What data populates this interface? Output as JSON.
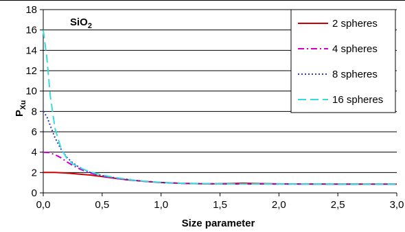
{
  "chart_data": {
    "type": "line",
    "title": "",
    "annotation": {
      "base": "SiO",
      "sub": "2"
    },
    "xlabel": "Size parameter",
    "ylabel": {
      "base": "P",
      "sub": "Xu"
    },
    "xlim": [
      0,
      3
    ],
    "ylim": [
      0,
      18
    ],
    "xticks": [
      0,
      0.5,
      1,
      1.5,
      2,
      2.5,
      3
    ],
    "xtick_labels": [
      "0,0",
      "0,5",
      "1,0",
      "1,5",
      "2,0",
      "2,5",
      "3,0"
    ],
    "yticks": [
      0,
      2,
      4,
      6,
      8,
      10,
      12,
      14,
      16,
      18
    ],
    "ytick_labels": [
      "0",
      "2",
      "4",
      "6",
      "8",
      "10",
      "12",
      "14",
      "16",
      "18"
    ],
    "grid": "horizontal",
    "legend_position": "top-right",
    "series": [
      {
        "name": "2 spheres",
        "color": "#cc0000",
        "dash": "none",
        "x": [
          0,
          0.1,
          0.2,
          0.3,
          0.4,
          0.5,
          0.6,
          0.7,
          0.8,
          0.9,
          1.0,
          1.2,
          1.4,
          1.6,
          1.7,
          1.8,
          2.0,
          2.2,
          2.5,
          2.8,
          3.0
        ],
        "y": [
          2.0,
          2.0,
          1.95,
          1.85,
          1.75,
          1.6,
          1.45,
          1.3,
          1.2,
          1.1,
          1.02,
          0.93,
          0.88,
          0.92,
          0.95,
          0.92,
          0.88,
          0.87,
          0.86,
          0.86,
          0.86
        ]
      },
      {
        "name": "4 spheres",
        "color": "#cc00cc",
        "dash": "9 4 2 4",
        "x": [
          0,
          0.05,
          0.1,
          0.15,
          0.2,
          0.25,
          0.3,
          0.35,
          0.4,
          0.5,
          0.6,
          0.7,
          0.8,
          1.0,
          1.2,
          1.5,
          2.0,
          2.5,
          3.0
        ],
        "y": [
          4.0,
          3.95,
          3.75,
          3.45,
          3.05,
          2.7,
          2.4,
          2.15,
          1.95,
          1.65,
          1.45,
          1.3,
          1.18,
          1.0,
          0.92,
          0.88,
          0.87,
          0.86,
          0.86
        ]
      },
      {
        "name": "8 spheres",
        "color": "#3333cc",
        "dash": "2 3",
        "x": [
          0,
          0.03,
          0.06,
          0.1,
          0.15,
          0.2,
          0.25,
          0.3,
          0.4,
          0.5,
          0.6,
          0.7,
          0.8,
          1.0,
          1.2,
          1.5,
          2.0,
          2.5,
          3.0
        ],
        "y": [
          8.0,
          7.5,
          6.6,
          5.4,
          4.3,
          3.5,
          2.95,
          2.55,
          2.0,
          1.7,
          1.5,
          1.35,
          1.2,
          1.02,
          0.93,
          0.88,
          0.87,
          0.86,
          0.86
        ]
      },
      {
        "name": "16 spheres",
        "color": "#33dddd",
        "dash": "12 6",
        "x": [
          0,
          0.03,
          0.06,
          0.1,
          0.15,
          0.2,
          0.25,
          0.3,
          0.4,
          0.5,
          0.6,
          0.7,
          0.8,
          1.0,
          1.2,
          1.5,
          2.0,
          2.5,
          3.0
        ],
        "y": [
          16.0,
          13.3,
          9.5,
          6.3,
          4.4,
          3.4,
          2.85,
          2.5,
          2.05,
          1.75,
          1.52,
          1.35,
          1.2,
          1.02,
          0.93,
          0.88,
          0.87,
          0.86,
          0.86
        ]
      }
    ]
  }
}
